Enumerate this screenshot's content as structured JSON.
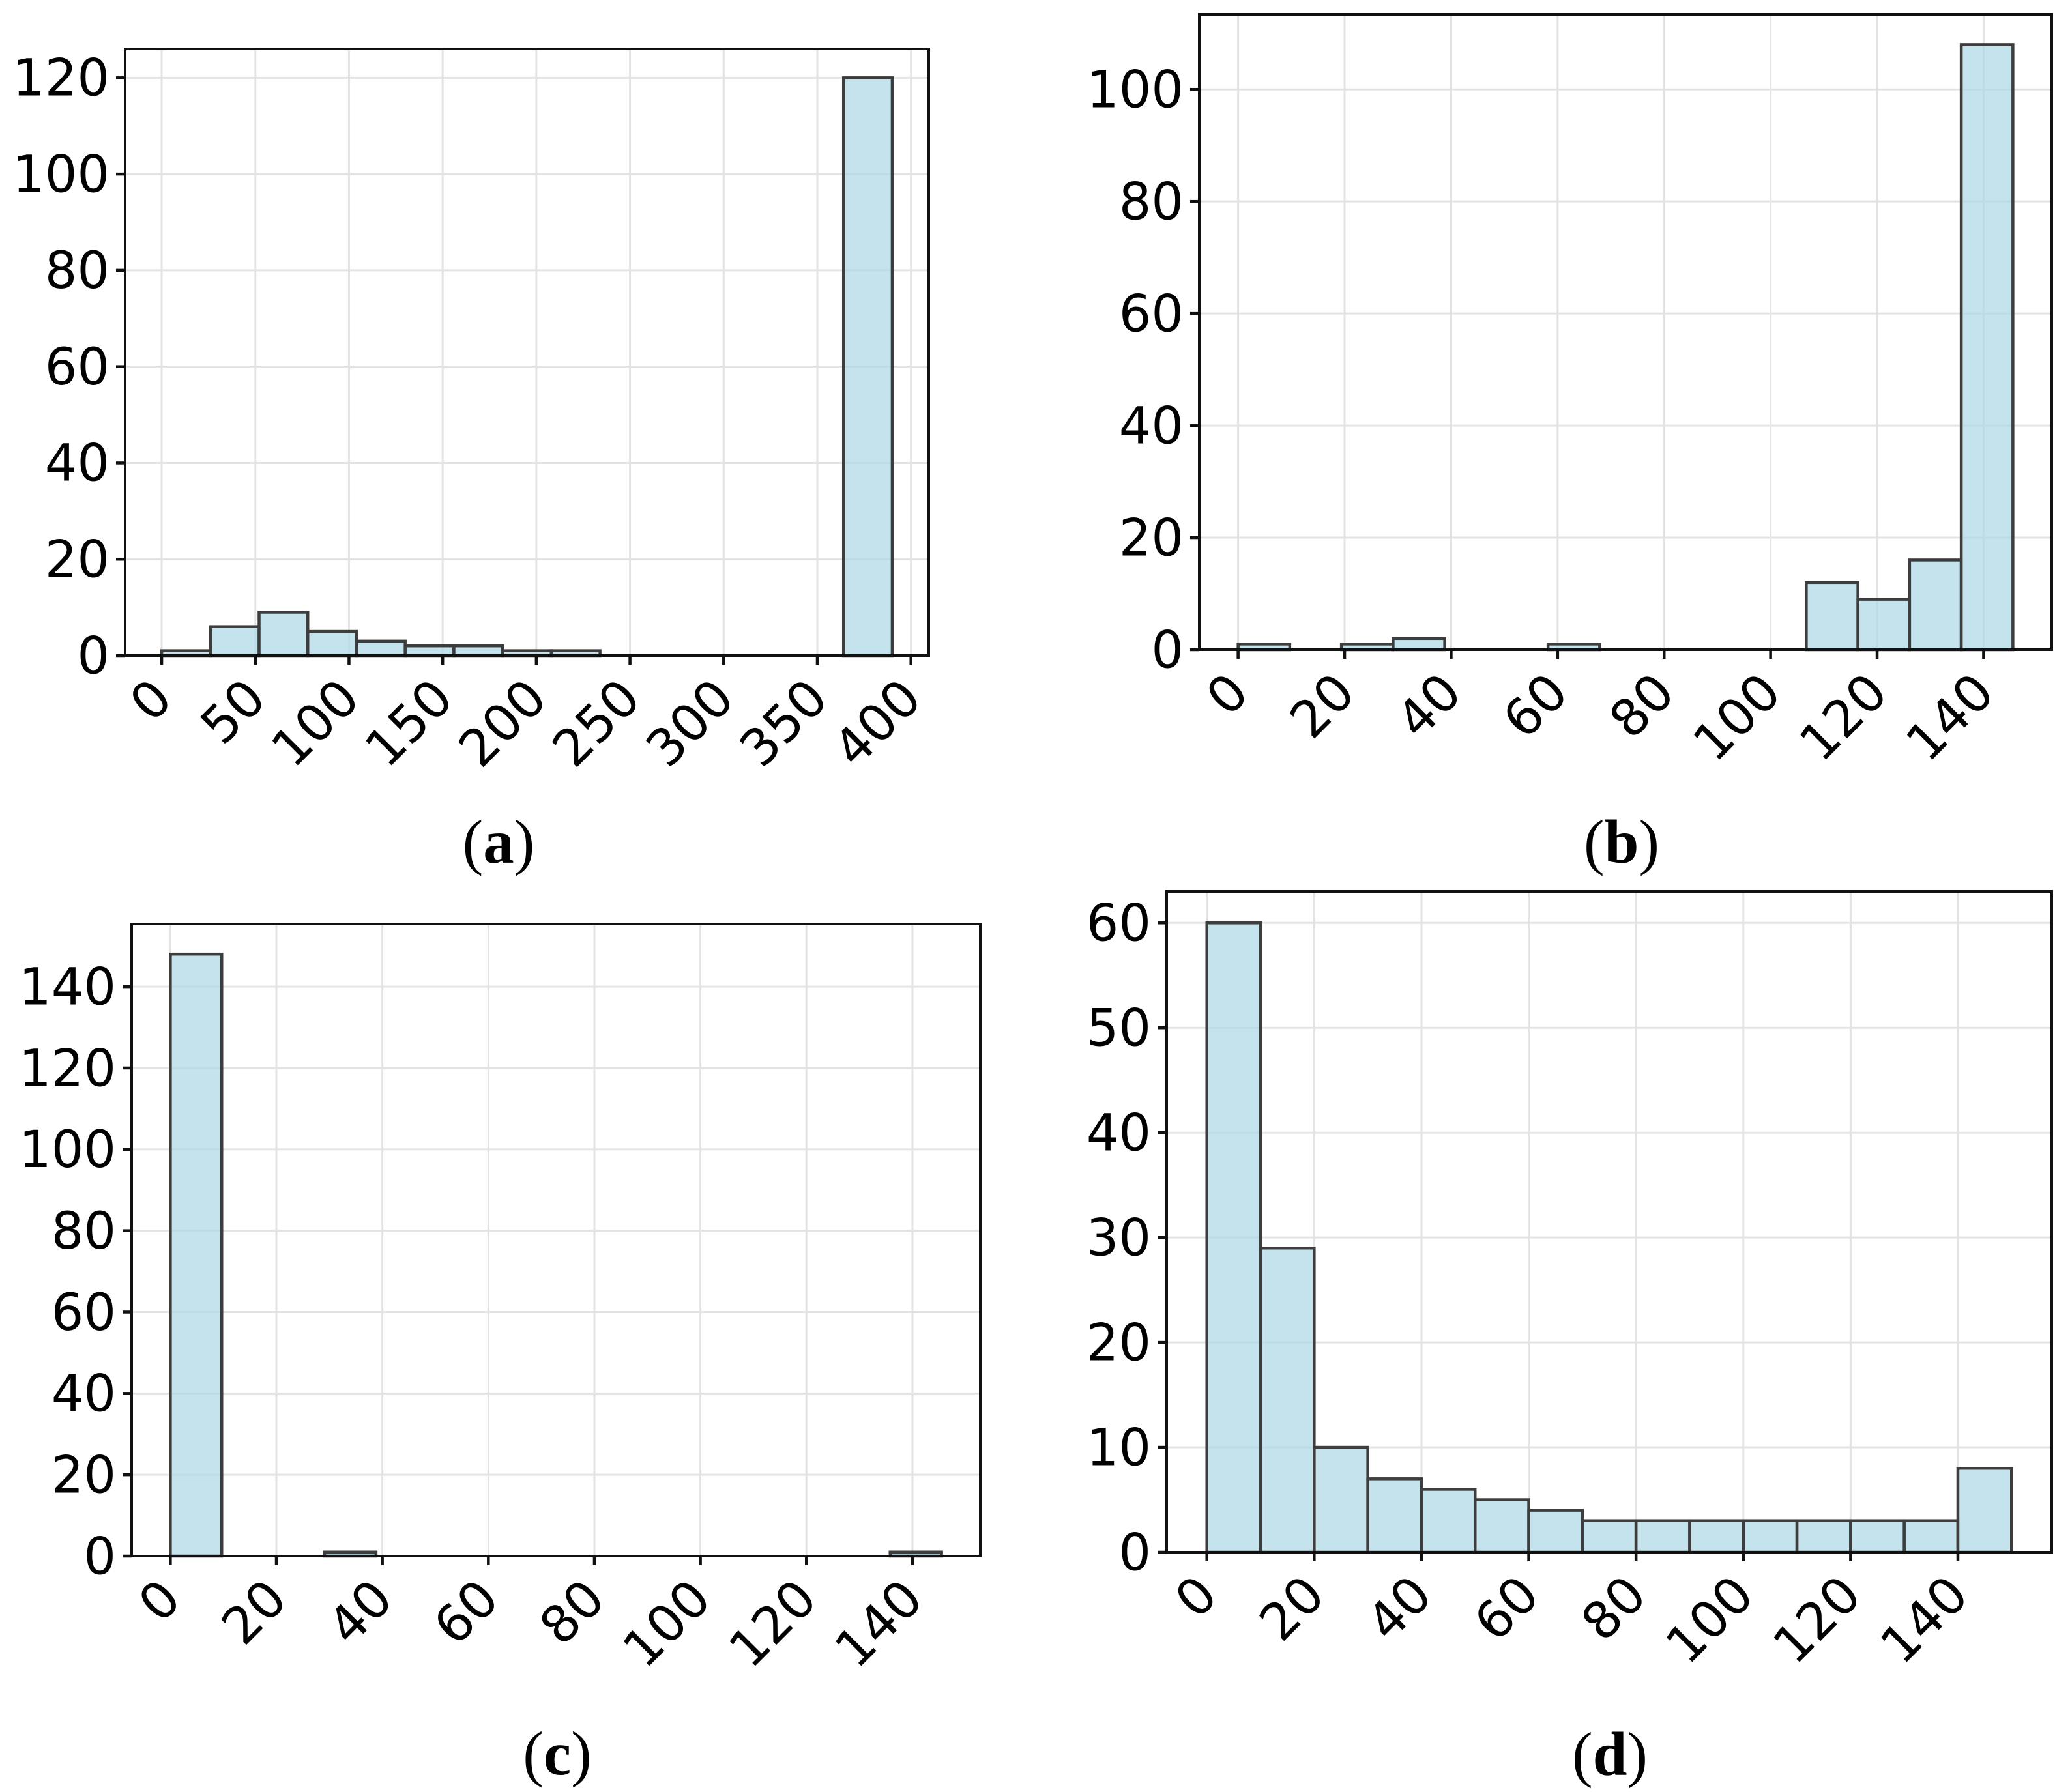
{
  "figure": {
    "background": "#ffffff",
    "bar_fill": "#ADD8E6",
    "bar_fill_alpha": 0.72,
    "bar_edge_color": "#3d3d3d",
    "grid_color": "#e3e3e3",
    "spine_color": "#111111",
    "tick_color": "#111111",
    "text_color": "#000000"
  },
  "chart_data": [
    {
      "id": "a",
      "type": "bar",
      "subtype": "histogram",
      "title": "",
      "xlabel": "",
      "ylabel": "",
      "legend_position": "none",
      "grid": true,
      "caption_open": "(",
      "caption_letter": "a",
      "caption_close": ")",
      "bin_start": 0,
      "bin_width": 26,
      "counts": [
        1,
        6,
        9,
        5,
        3,
        2,
        2,
        1,
        1,
        0,
        0,
        0,
        0,
        0,
        120
      ],
      "xticks": [
        0,
        50,
        100,
        150,
        200,
        250,
        300,
        350,
        400
      ],
      "yticks": [
        0,
        20,
        40,
        60,
        80,
        100,
        120
      ],
      "xlim": [
        -19.5,
        409.5
      ],
      "ylim": [
        0,
        126
      ],
      "xtick_rotation": 45
    },
    {
      "id": "b",
      "type": "bar",
      "subtype": "histogram",
      "title": "",
      "xlabel": "",
      "ylabel": "",
      "legend_position": "none",
      "grid": true,
      "caption_open": "(",
      "caption_letter": "b",
      "caption_close": ")",
      "bin_start": 0,
      "bin_width": 9.7,
      "counts": [
        1,
        0,
        1,
        2,
        0,
        0,
        1,
        0,
        0,
        0,
        0,
        12,
        9,
        16,
        108
      ],
      "xticks": [
        0,
        20,
        40,
        60,
        80,
        100,
        120,
        140
      ],
      "yticks": [
        0,
        20,
        40,
        60,
        80,
        100
      ],
      "xlim": [
        -7.3,
        152.8
      ],
      "ylim": [
        0,
        113.4
      ],
      "xtick_rotation": 45
    },
    {
      "id": "c",
      "type": "bar",
      "subtype": "histogram",
      "title": "",
      "xlabel": "",
      "ylabel": "",
      "legend_position": "none",
      "grid": true,
      "caption_open": "(",
      "caption_letter": "c",
      "caption_close": ")",
      "bin_start": 0,
      "bin_width": 9.7,
      "counts": [
        148,
        0,
        0,
        1,
        0,
        0,
        0,
        0,
        0,
        0,
        0,
        0,
        0,
        0,
        1
      ],
      "xticks": [
        0,
        20,
        40,
        60,
        80,
        100,
        120,
        140
      ],
      "yticks": [
        0,
        20,
        40,
        60,
        80,
        100,
        120,
        140
      ],
      "xlim": [
        -7.3,
        152.8
      ],
      "ylim": [
        0,
        155.4
      ],
      "xtick_rotation": 45
    },
    {
      "id": "d",
      "type": "bar",
      "subtype": "histogram",
      "title": "",
      "xlabel": "",
      "ylabel": "",
      "legend_position": "none",
      "grid": true,
      "caption_open": "(",
      "caption_letter": "d",
      "caption_close": ")",
      "bin_start": 0,
      "bin_width": 10,
      "counts": [
        60,
        29,
        10,
        7,
        6,
        5,
        4,
        3,
        3,
        3,
        3,
        3,
        3,
        3,
        8
      ],
      "xticks": [
        0,
        20,
        40,
        60,
        80,
        100,
        120,
        140
      ],
      "yticks": [
        0,
        10,
        20,
        30,
        40,
        50,
        60
      ],
      "xlim": [
        -7.5,
        157.5
      ],
      "ylim": [
        0,
        63
      ],
      "xtick_rotation": 45
    }
  ]
}
